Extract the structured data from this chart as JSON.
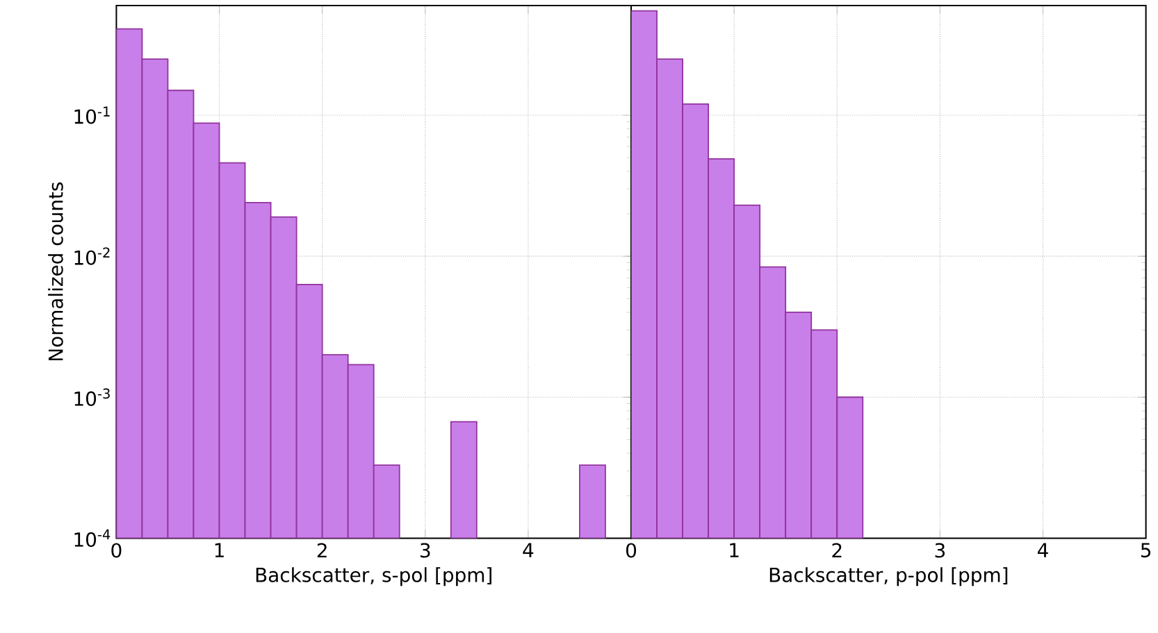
{
  "chart_data": [
    {
      "type": "histogram",
      "xlabel": "Backscatter, s-pol [ppm]",
      "ylabel": "Normalized counts",
      "color": "#c97fe9",
      "bins": [
        0,
        0.25,
        0.5,
        0.75,
        1,
        1.25,
        1.5,
        1.75,
        2,
        2.25,
        2.5,
        2.75,
        3,
        3.25,
        3.5,
        3.75,
        4,
        4.25,
        4.5,
        4.75
      ],
      "values": [
        0.41,
        0.25,
        0.15,
        0.088,
        0.046,
        0.024,
        0.019,
        0.0063,
        0.002,
        0.0017,
        0.00033,
        null,
        null,
        0.00067,
        null,
        null,
        null,
        null,
        0.00033
      ],
      "xlim": [
        0,
        5
      ],
      "xticks": [
        0,
        1,
        2,
        3,
        4
      ],
      "ylim": [
        0.0001,
        0.6
      ],
      "yticks": [
        {
          "value": 0.0001,
          "label": "10$^{-4}$"
        },
        {
          "value": 0.001,
          "label": "10$^{-3}$"
        },
        {
          "value": 0.01,
          "label": "10$^{-2}$"
        },
        {
          "value": 0.1,
          "label": "10$^{-1}$"
        }
      ],
      "log": true,
      "grid": true
    },
    {
      "type": "histogram",
      "xlabel": "Backscatter, p-pol [ppm]",
      "color": "#c97fe9",
      "bins": [
        0,
        0.25,
        0.5,
        0.75,
        1,
        1.25,
        1.5,
        1.75,
        2,
        2.25
      ],
      "values": [
        0.55,
        0.25,
        0.12,
        0.049,
        0.023,
        0.0084,
        0.004,
        0.003,
        0.001
      ],
      "xlim": [
        0,
        5
      ],
      "xticks": [
        0,
        1,
        2,
        3,
        4,
        5
      ],
      "ylim": [
        0.0001,
        0.6
      ],
      "yticks": [
        {
          "value": 0.0001,
          "label": null
        },
        {
          "value": 0.001,
          "label": null
        },
        {
          "value": 0.01,
          "label": null
        },
        {
          "value": 0.1,
          "label": null
        }
      ],
      "log": true,
      "grid": true,
      "tick_labels": "x"
    }
  ]
}
